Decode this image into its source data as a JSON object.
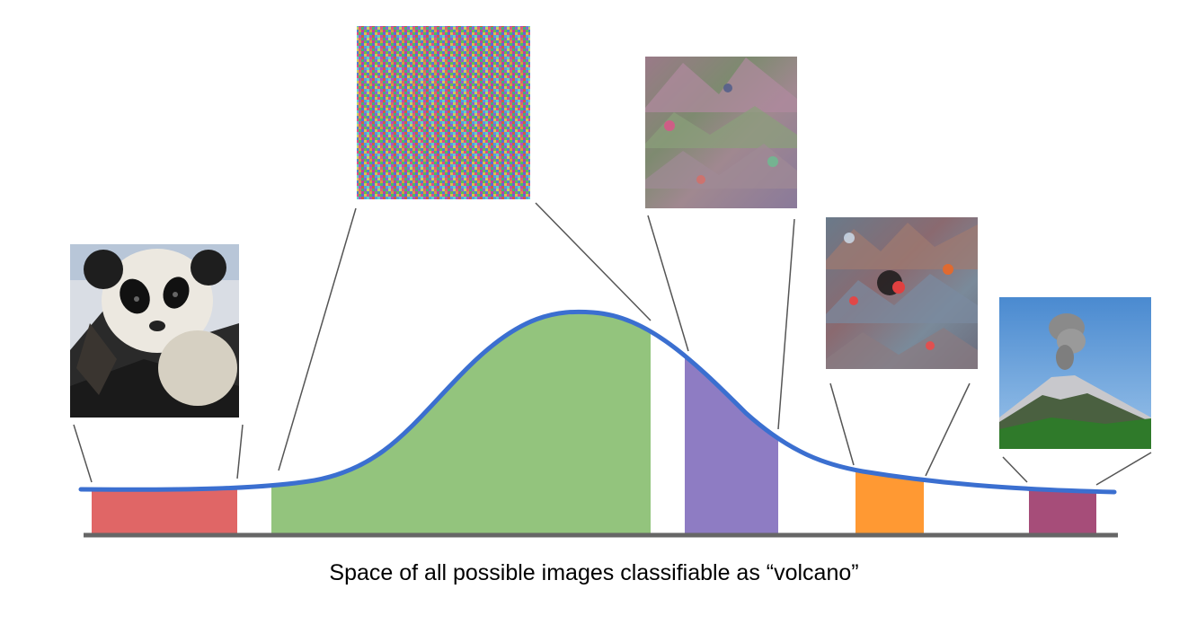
{
  "caption": "Space of all possible images classifiable as “volcano”",
  "colors": {
    "curve": "#3b6fd0",
    "baseline": "#666666",
    "connector": "#555555",
    "regions": [
      "#e06666",
      "#93c47d",
      "#8e7cc3",
      "#ff9933",
      "#a64d79"
    ]
  },
  "thumbnails": [
    {
      "name": "panda-image",
      "depicts": "panda"
    },
    {
      "name": "noise-image",
      "depicts": "random noise"
    },
    {
      "name": "synthetic-volcano-image-1",
      "depicts": "synthetic volcano texture"
    },
    {
      "name": "synthetic-volcano-image-2",
      "depicts": "synthetic volcano texture"
    },
    {
      "name": "volcano-photo",
      "depicts": "volcano"
    }
  ]
}
